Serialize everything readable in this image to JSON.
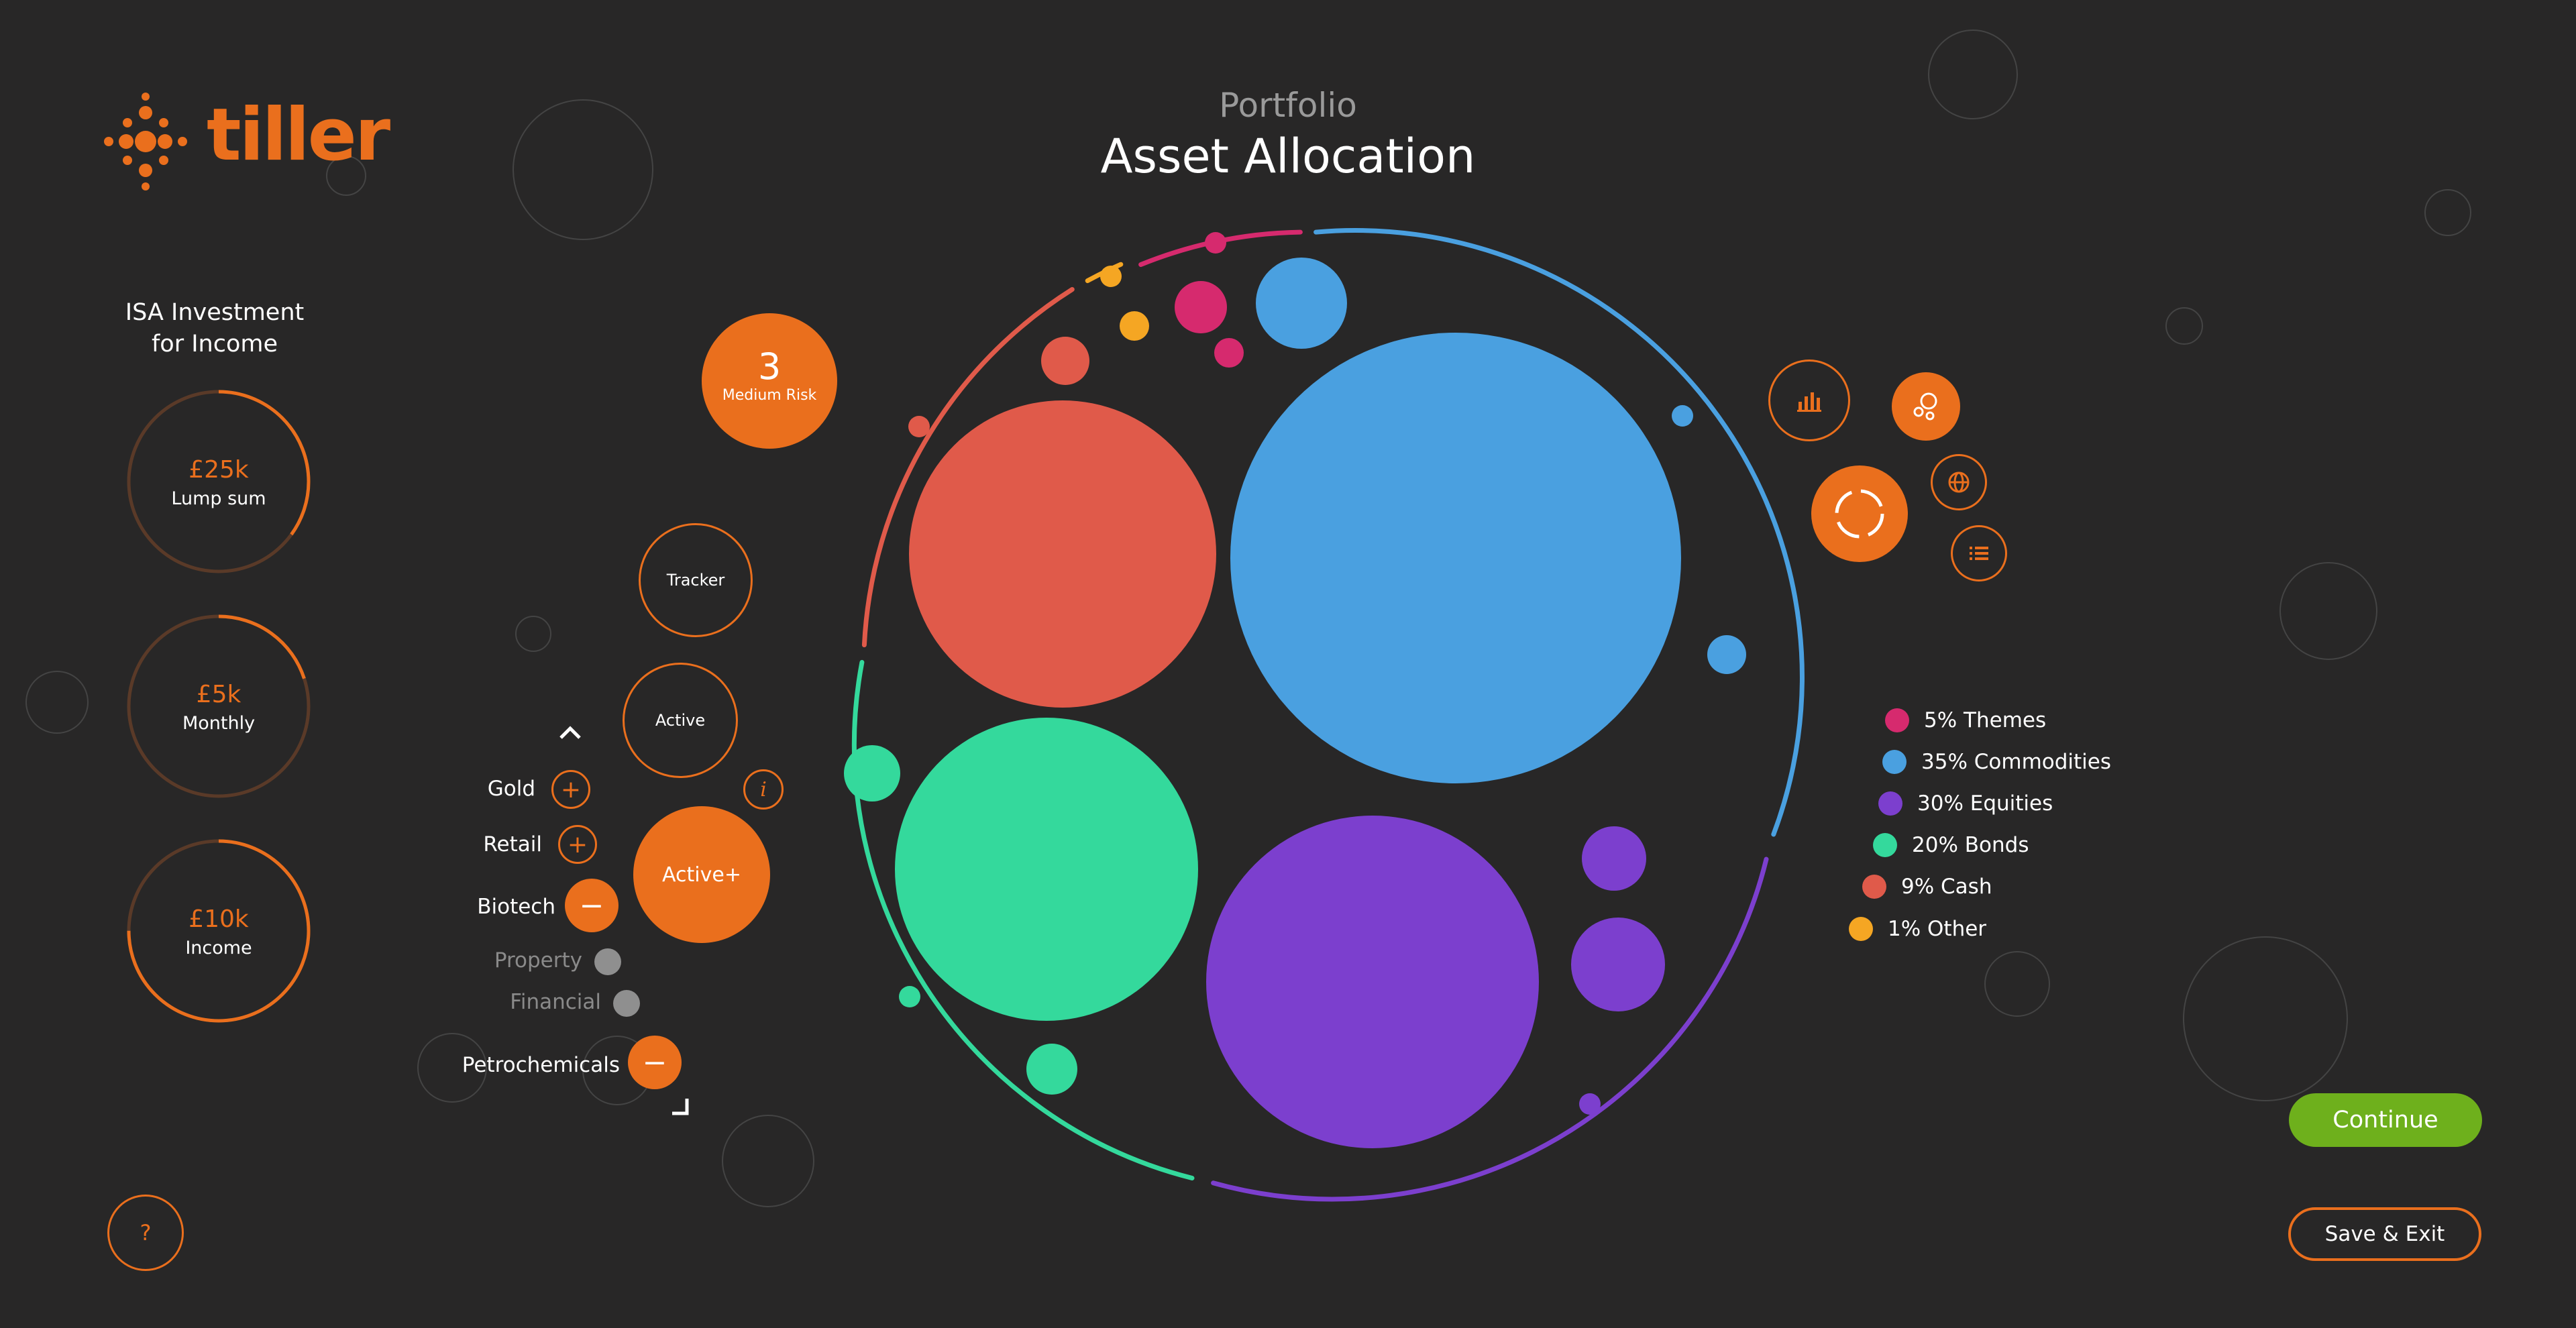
{
  "brand": {
    "name": "tiller",
    "color": "#ea6f1d"
  },
  "header": {
    "subtitle": "Portfolio",
    "title": "Asset Allocation"
  },
  "plan": {
    "title_line1": "ISA Investment",
    "title_line2": "for Income",
    "cards": [
      {
        "amount": "£25k",
        "label": "Lump sum",
        "progress": 0.35
      },
      {
        "amount": "£5k",
        "label": "Monthly",
        "progress": 0.2
      },
      {
        "amount": "£10k",
        "label": "Income",
        "progress": 0.75
      }
    ]
  },
  "risk": {
    "level": "3",
    "label": "Medium Risk"
  },
  "fund_types": {
    "tracker": "Tracker",
    "active": "Active",
    "active_plus": "Active+",
    "info_icon": "i"
  },
  "sectors": [
    {
      "label": "Gold",
      "action": "+"
    },
    {
      "label": "Retail",
      "action": "+"
    },
    {
      "label": "Biotech",
      "action": "−"
    },
    {
      "label": "Property",
      "action": "disabled"
    },
    {
      "label": "Financial",
      "action": "disabled"
    },
    {
      "label": "Petrochemicals",
      "action": "−"
    }
  ],
  "allocation": [
    {
      "label": "5% Themes",
      "percent": 5,
      "color": "#d62a6e"
    },
    {
      "label": "35% Commodities",
      "percent": 35,
      "color": "#4aa0e0"
    },
    {
      "label": "30% Equities",
      "percent": 30,
      "color": "#7c3fce"
    },
    {
      "label": "20% Bonds",
      "percent": 20,
      "color": "#34d99c"
    },
    {
      "label": "9% Cash",
      "percent": 9,
      "color": "#e05a4a"
    },
    {
      "label": "1% Other",
      "percent": 1,
      "color": "#f5a623"
    }
  ],
  "tools": [
    "bar-chart-icon",
    "bubbles-icon",
    "globe-icon",
    "list-icon",
    "donut-icon"
  ],
  "help": {
    "label": "?"
  },
  "actions": {
    "continue": "Continue",
    "save_exit": "Save & Exit"
  }
}
